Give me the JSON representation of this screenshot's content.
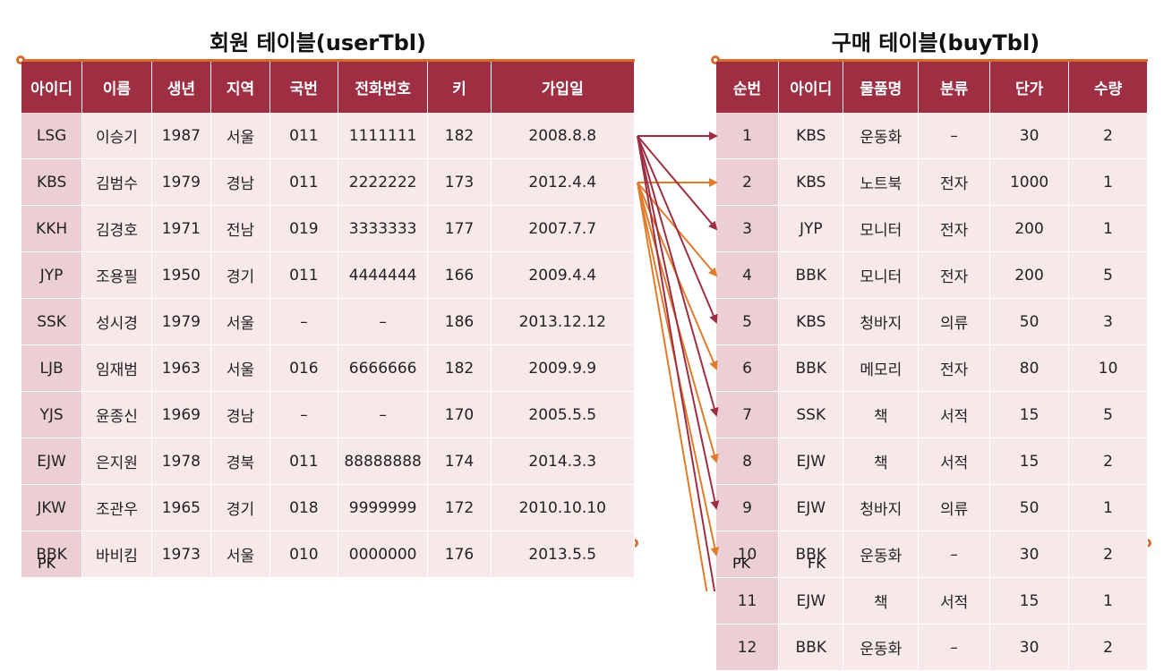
{
  "user_table": {
    "title": "회원 테이블(userTbl)",
    "headers": [
      "아이디",
      "이름",
      "생년",
      "지역",
      "국번",
      "전화번호",
      "키",
      "가입일"
    ],
    "rows": [
      [
        "LSG",
        "이승기",
        "1987",
        "서울",
        "011",
        "1111111",
        "182",
        "2008.8.8"
      ],
      [
        "KBS",
        "김범수",
        "1979",
        "경남",
        "011",
        "2222222",
        "173",
        "2012.4.4"
      ],
      [
        "KKH",
        "김경호",
        "1971",
        "전남",
        "019",
        "3333333",
        "177",
        "2007.7.7"
      ],
      [
        "JYP",
        "조용필",
        "1950",
        "경기",
        "011",
        "4444444",
        "166",
        "2009.4.4"
      ],
      [
        "SSK",
        "성시경",
        "1979",
        "서울",
        "–",
        "–",
        "186",
        "2013.12.12"
      ],
      [
        "LJB",
        "임재범",
        "1963",
        "서울",
        "016",
        "6666666",
        "182",
        "2009.9.9"
      ],
      [
        "YJS",
        "윤종신",
        "1969",
        "경남",
        "–",
        "–",
        "170",
        "2005.5.5"
      ],
      [
        "EJW",
        "은지원",
        "1978",
        "경북",
        "011",
        "88888888",
        "174",
        "2014.3.3"
      ],
      [
        "JKW",
        "조관우",
        "1965",
        "경기",
        "018",
        "9999999",
        "172",
        "2010.10.10"
      ],
      [
        "BBK",
        "바비킴",
        "1973",
        "서울",
        "010",
        "0000000",
        "176",
        "2013.5.5"
      ]
    ],
    "pk_label": "PK"
  },
  "buy_table": {
    "title": "구매 테이블(buyTbl)",
    "headers": [
      "순번",
      "아이디",
      "물품명",
      "분류",
      "단가",
      "수량"
    ],
    "rows": [
      [
        "1",
        "KBS",
        "운동화",
        "–",
        "30",
        "2"
      ],
      [
        "2",
        "KBS",
        "노트북",
        "전자",
        "1000",
        "1"
      ],
      [
        "3",
        "JYP",
        "모니터",
        "전자",
        "200",
        "1"
      ],
      [
        "4",
        "BBK",
        "모니터",
        "전자",
        "200",
        "5"
      ],
      [
        "5",
        "KBS",
        "청바지",
        "의류",
        "50",
        "3"
      ],
      [
        "6",
        "BBK",
        "메모리",
        "전자",
        "80",
        "10"
      ],
      [
        "7",
        "SSK",
        "책",
        "서적",
        "15",
        "5"
      ],
      [
        "8",
        "EJW",
        "책",
        "서적",
        "15",
        "2"
      ],
      [
        "9",
        "EJW",
        "청바지",
        "의류",
        "50",
        "1"
      ],
      [
        "10",
        "BBK",
        "운동화",
        "–",
        "30",
        "2"
      ],
      [
        "11",
        "EJW",
        "책",
        "서적",
        "15",
        "1"
      ],
      [
        "12",
        "BBK",
        "운동화",
        "–",
        "30",
        "2"
      ]
    ],
    "pk_label": "PK",
    "fk_label": "FK"
  },
  "colors": {
    "header": "#9e2f43",
    "arrow_a": "#9e2f43",
    "arrow_b": "#e07b2c",
    "accent": "#d86a2e"
  }
}
